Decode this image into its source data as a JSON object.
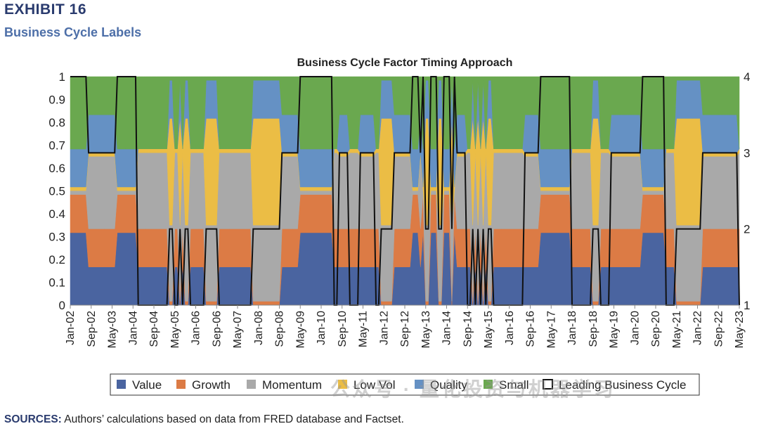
{
  "header": {
    "exhibit": "EXHIBIT 16",
    "subtitle": "Business Cycle Labels"
  },
  "footer": {
    "sources_label": "SOURCES:",
    "sources_text": "Authors’ calculations based on data from FRED database and Factset."
  },
  "watermark": "公众号 · 量化投资与机器学习",
  "chart_data": {
    "type": "area",
    "title": "Business Cycle Factor Timing Approach",
    "y_left_ticks": [
      "0",
      "0.1",
      "0.2",
      "0.3",
      "0.4",
      "0.5",
      "0.6",
      "0.7",
      "0.8",
      "0.9",
      "1"
    ],
    "y_right_ticks": [
      "1",
      "2",
      "3",
      "4"
    ],
    "ylim_left": [
      0,
      1
    ],
    "ylim_right": [
      1,
      4
    ],
    "x_ticks": [
      "Jan-02",
      "Sep-02",
      "May-03",
      "Jan-04",
      "Sep-04",
      "May-05",
      "Jan-06",
      "Sep-06",
      "May-07",
      "Jan-08",
      "Sep-08",
      "May-09",
      "Jan-10",
      "Sep-10",
      "May-11",
      "Jan-12",
      "Sep-12",
      "May-13",
      "Jan-14",
      "Sep-14",
      "May-15",
      "Jan-16",
      "Sep-16",
      "May-17",
      "Jan-18",
      "Sep-18",
      "May-19",
      "Jan-20",
      "Sep-20",
      "May-21",
      "Jan-22",
      "Sep-22",
      "May-23"
    ],
    "x_range_months": [
      0,
      256
    ],
    "factor_series": [
      "Value",
      "Growth",
      "Momentum",
      "Low Vol",
      "Quality",
      "Small"
    ],
    "colors": {
      "Value": "#4a64a0",
      "Growth": "#dc7b45",
      "Momentum": "#a9a9a9",
      "Low Vol": "#ebbd45",
      "Quality": "#6591c4",
      "Small": "#6aa84f",
      "Leading Business Cycle": "#111111"
    },
    "regime_weights": {
      "1": {
        "Value": 0.167,
        "Growth": 0.167,
        "Momentum": 0.333,
        "Low Vol": 0.017,
        "Quality": 0.0,
        "Small": 0.316
      },
      "2": {
        "Value": 0.0,
        "Growth": 0.017,
        "Momentum": 0.333,
        "Low Vol": 0.467,
        "Quality": 0.167,
        "Small": 0.016
      },
      "3": {
        "Value": 0.167,
        "Growth": 0.167,
        "Momentum": 0.317,
        "Low Vol": 0.016,
        "Quality": 0.166,
        "Small": 0.167
      },
      "4": {
        "Value": 0.317,
        "Growth": 0.167,
        "Momentum": 0.017,
        "Low Vol": 0.016,
        "Quality": 0.166,
        "Small": 0.317
      }
    },
    "leading_business_cycle": [
      {
        "from": 0,
        "to": 7,
        "phase": 4
      },
      {
        "from": 7,
        "to": 18,
        "phase": 3
      },
      {
        "from": 18,
        "to": 26,
        "phase": 4
      },
      {
        "from": 26,
        "to": 38,
        "phase": 1
      },
      {
        "from": 38,
        "to": 40,
        "phase": 2
      },
      {
        "from": 40,
        "to": 42,
        "phase": 1
      },
      {
        "from": 42,
        "to": 43,
        "phase": 2
      },
      {
        "from": 43,
        "to": 44,
        "phase": 1
      },
      {
        "from": 44,
        "to": 46,
        "phase": 2
      },
      {
        "from": 46,
        "to": 52,
        "phase": 1
      },
      {
        "from": 52,
        "to": 57,
        "phase": 2
      },
      {
        "from": 57,
        "to": 70,
        "phase": 1
      },
      {
        "from": 70,
        "to": 81,
        "phase": 2
      },
      {
        "from": 81,
        "to": 88,
        "phase": 3
      },
      {
        "from": 88,
        "to": 101,
        "phase": 4
      },
      {
        "from": 101,
        "to": 103,
        "phase": 1
      },
      {
        "from": 103,
        "to": 107,
        "phase": 3
      },
      {
        "from": 107,
        "to": 111,
        "phase": 1
      },
      {
        "from": 111,
        "to": 117,
        "phase": 3
      },
      {
        "from": 117,
        "to": 119,
        "phase": 1
      },
      {
        "from": 119,
        "to": 124,
        "phase": 2
      },
      {
        "from": 124,
        "to": 131,
        "phase": 3
      },
      {
        "from": 131,
        "to": 134,
        "phase": 4
      },
      {
        "from": 134,
        "to": 135,
        "phase": 3
      },
      {
        "from": 135,
        "to": 136,
        "phase": 4
      },
      {
        "from": 136,
        "to": 138,
        "phase": 2
      },
      {
        "from": 138,
        "to": 141,
        "phase": 4
      },
      {
        "from": 141,
        "to": 143,
        "phase": 2
      },
      {
        "from": 143,
        "to": 146,
        "phase": 4
      },
      {
        "from": 146,
        "to": 147,
        "phase": 2
      },
      {
        "from": 147,
        "to": 148,
        "phase": 4
      },
      {
        "from": 148,
        "to": 152,
        "phase": 3
      },
      {
        "from": 152,
        "to": 154,
        "phase": 1
      },
      {
        "from": 154,
        "to": 155,
        "phase": 2
      },
      {
        "from": 155,
        "to": 156,
        "phase": 1
      },
      {
        "from": 156,
        "to": 157,
        "phase": 2
      },
      {
        "from": 157,
        "to": 158,
        "phase": 1
      },
      {
        "from": 158,
        "to": 159,
        "phase": 2
      },
      {
        "from": 159,
        "to": 160,
        "phase": 1
      },
      {
        "from": 160,
        "to": 162,
        "phase": 2
      },
      {
        "from": 162,
        "to": 174,
        "phase": 1
      },
      {
        "from": 174,
        "to": 180,
        "phase": 3
      },
      {
        "from": 180,
        "to": 192,
        "phase": 4
      },
      {
        "from": 192,
        "to": 200,
        "phase": 1
      },
      {
        "from": 200,
        "to": 203,
        "phase": 2
      },
      {
        "from": 203,
        "to": 207,
        "phase": 1
      },
      {
        "from": 207,
        "to": 219,
        "phase": 3
      },
      {
        "from": 219,
        "to": 228,
        "phase": 4
      },
      {
        "from": 228,
        "to": 232,
        "phase": 1
      },
      {
        "from": 232,
        "to": 242,
        "phase": 2
      },
      {
        "from": 242,
        "to": 256,
        "phase": 3
      },
      {
        "from": 256,
        "to": 257,
        "phase": 1
      }
    ],
    "legend": [
      "Value",
      "Growth",
      "Momentum",
      "Low Vol",
      "Quality",
      "Small",
      "Leading Business Cycle"
    ],
    "legend_position": "bottom"
  }
}
